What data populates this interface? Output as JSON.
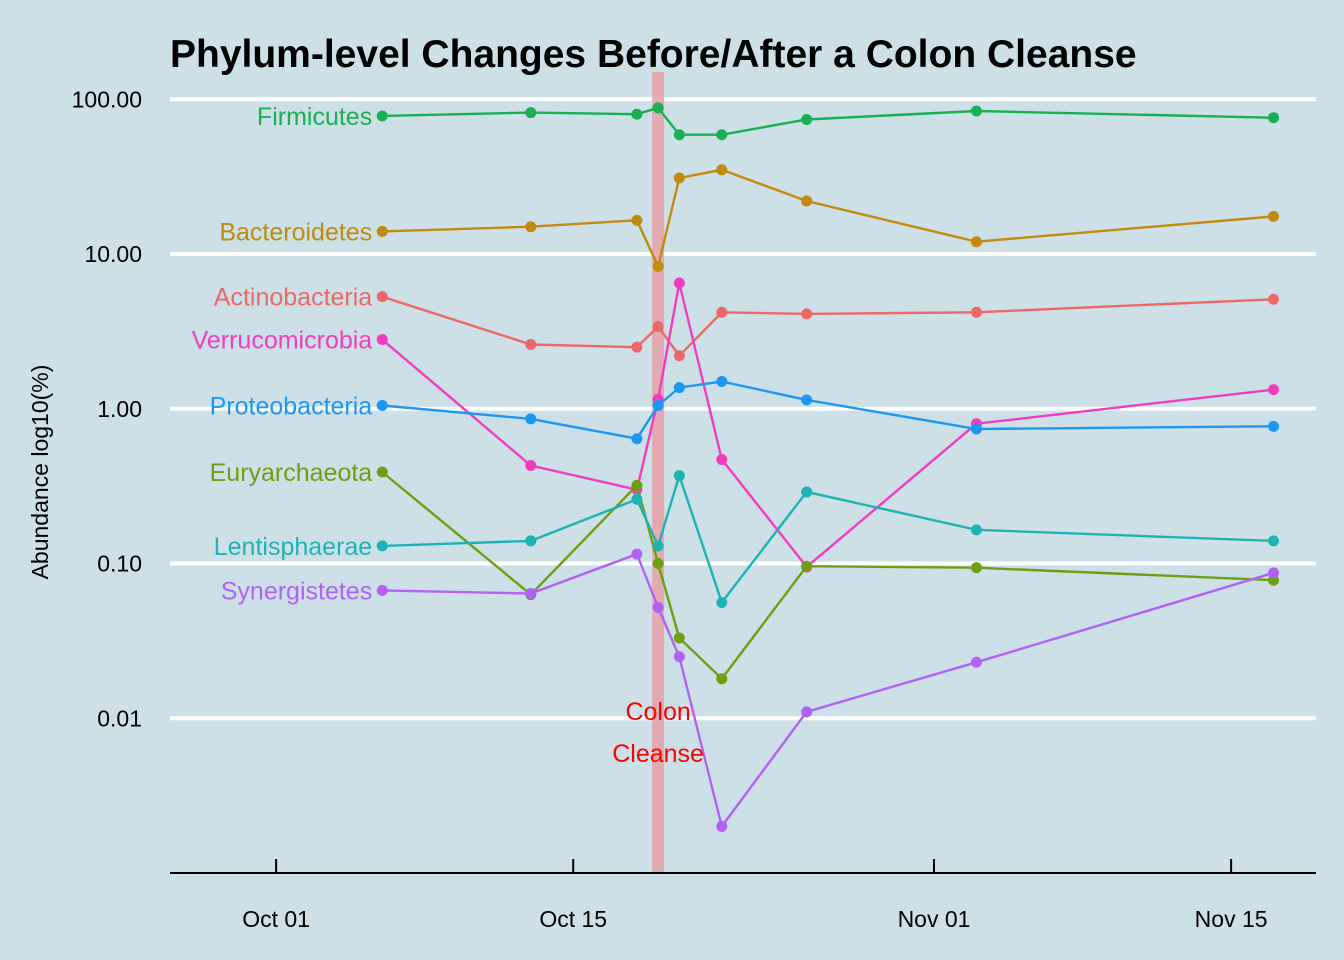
{
  "chart_data": {
    "type": "line",
    "title": "Phylum-level Changes Before/After a Colon Cleanse",
    "xlabel": "",
    "ylabel": "Abundance log10(%)",
    "y_scale": "log10",
    "ylim": [
      0.001,
      150
    ],
    "xlim": [
      "2017-09-26",
      "2017-11-19"
    ],
    "grid": "horizontal major lines only",
    "y_ticks": [
      {
        "value": 100,
        "label": "100.00"
      },
      {
        "value": 10,
        "label": "10.00"
      },
      {
        "value": 1,
        "label": "1.00"
      },
      {
        "value": 0.1,
        "label": "0.10"
      },
      {
        "value": 0.01,
        "label": "0.01"
      }
    ],
    "x_ticks": [
      {
        "value": "2017-10-01",
        "label": "Oct 01"
      },
      {
        "value": "2017-10-15",
        "label": "Oct 15"
      },
      {
        "value": "2017-11-01",
        "label": "Nov 01"
      },
      {
        "value": "2017-11-15",
        "label": "Nov 15"
      }
    ],
    "event": {
      "date": "2017-10-19",
      "color": "#e8a0a8",
      "label_line1": "Colon",
      "label_line2": "Cleanse"
    },
    "x": [
      "2017-10-06",
      "2017-10-13",
      "2017-10-18",
      "2017-10-19",
      "2017-10-20",
      "2017-10-22",
      "2017-10-26",
      "2017-11-03",
      "2017-11-17"
    ],
    "series": [
      {
        "name": "Firmicutes",
        "color": "#1aaf54",
        "values": [
          78,
          82,
          80,
          88,
          59,
          59,
          74,
          84,
          76
        ]
      },
      {
        "name": "Bacteroidetes",
        "color": "#c08b0e",
        "values": [
          14,
          15,
          16.5,
          8.3,
          31,
          35,
          22,
          12,
          17.5
        ]
      },
      {
        "name": "Actinobacteria",
        "color": "#ec6868",
        "values": [
          5.3,
          2.6,
          2.5,
          3.4,
          2.2,
          4.2,
          4.1,
          4.2,
          5.1
        ]
      },
      {
        "name": "Verrucomicrobia",
        "color": "#f03dbf",
        "values": [
          2.8,
          0.43,
          0.3,
          1.15,
          6.5,
          0.47,
          0.095,
          0.8,
          1.33
        ]
      },
      {
        "name": "Proteobacteria",
        "color": "#1e97f3",
        "values": [
          1.05,
          0.86,
          0.64,
          1.05,
          1.37,
          1.5,
          1.14,
          0.74,
          0.77
        ]
      },
      {
        "name": "Euryarchaeota",
        "color": "#6e9e12",
        "values": [
          0.39,
          0.063,
          0.32,
          0.1,
          0.033,
          0.018,
          0.096,
          0.094,
          0.078
        ]
      },
      {
        "name": "Lentisphaerae",
        "color": "#1fb2b4",
        "values": [
          0.13,
          0.14,
          0.26,
          0.13,
          0.37,
          0.056,
          0.29,
          0.165,
          0.14
        ]
      },
      {
        "name": "Synergistetes",
        "color": "#b162f5",
        "values": [
          0.067,
          0.064,
          0.115,
          0.052,
          0.025,
          0.002,
          0.011,
          0.023,
          0.087
        ]
      }
    ]
  }
}
